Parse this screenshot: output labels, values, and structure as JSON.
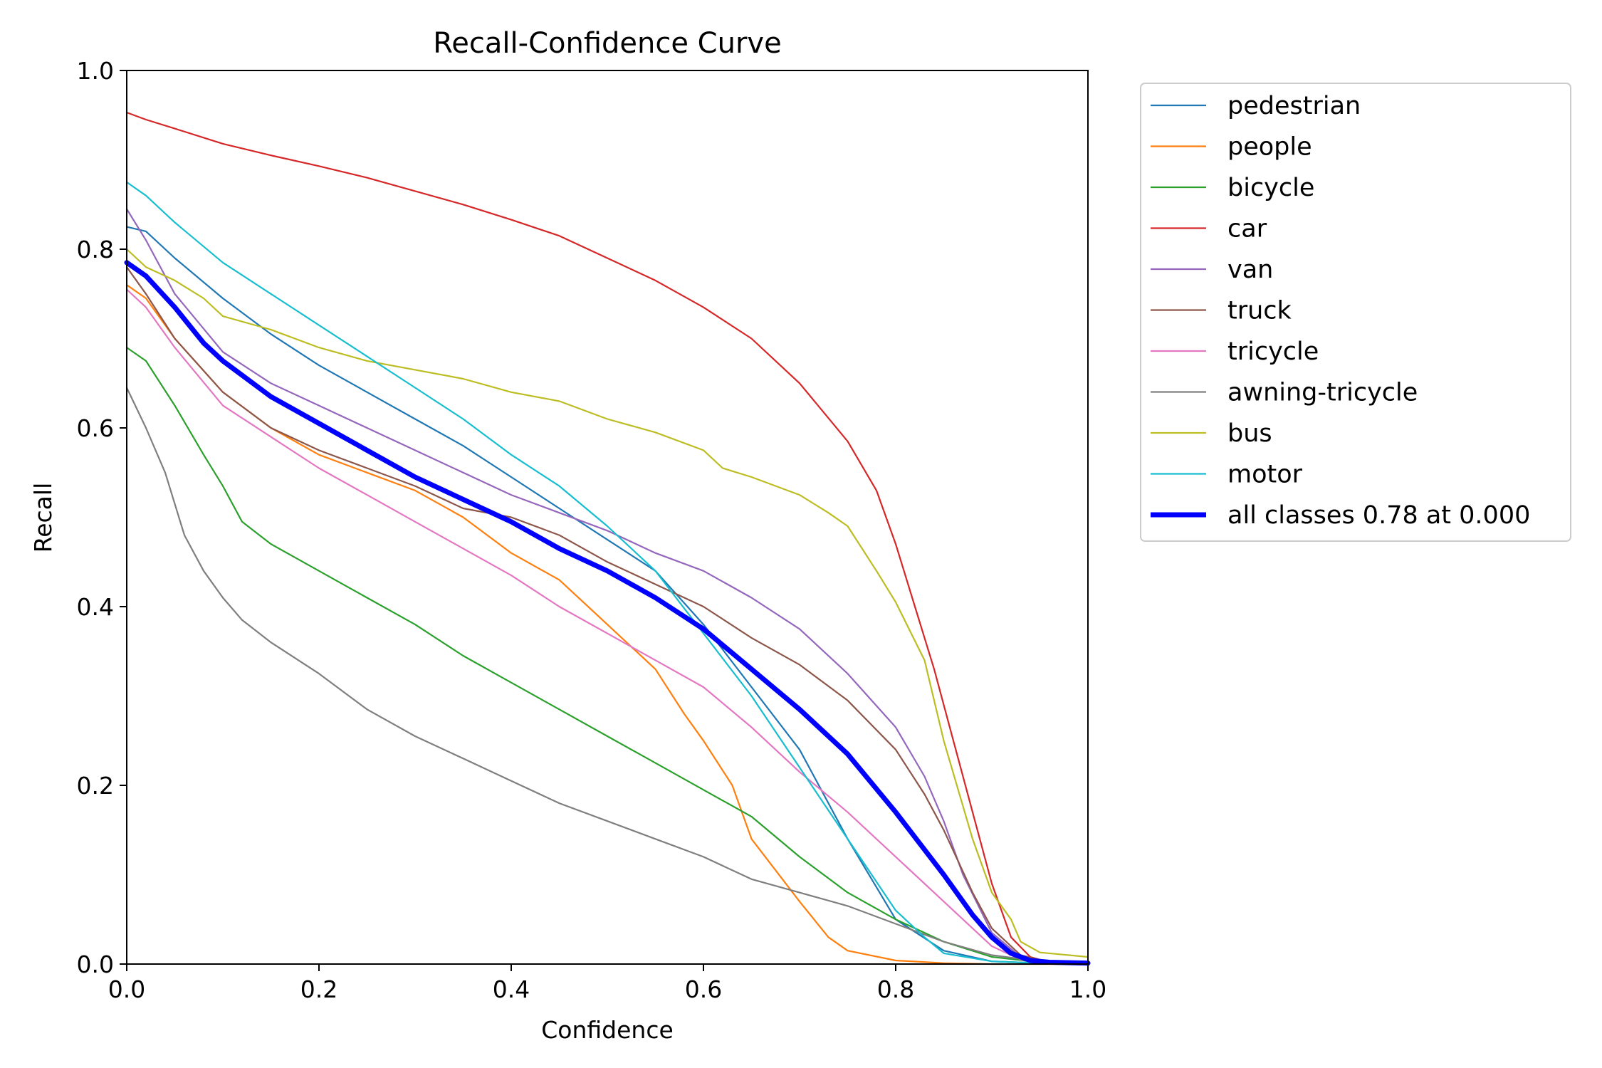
{
  "chart_data": {
    "type": "line",
    "title": "Recall-Confidence Curve",
    "xlabel": "Confidence",
    "ylabel": "Recall",
    "xlim": [
      0,
      1
    ],
    "ylim": [
      0,
      1
    ],
    "xticks": [
      "0.0",
      "0.2",
      "0.4",
      "0.6",
      "0.8",
      "1.0"
    ],
    "yticks": [
      "0.0",
      "0.2",
      "0.4",
      "0.6",
      "0.8",
      "1.0"
    ],
    "grid": false,
    "legend_position": "outside upper right",
    "series": [
      {
        "name": "pedestrian",
        "color": "#1f77b4",
        "width": "thin",
        "points": [
          [
            0,
            0.825
          ],
          [
            0.02,
            0.82
          ],
          [
            0.05,
            0.79
          ],
          [
            0.1,
            0.745
          ],
          [
            0.15,
            0.705
          ],
          [
            0.2,
            0.67
          ],
          [
            0.25,
            0.64
          ],
          [
            0.3,
            0.61
          ],
          [
            0.35,
            0.58
          ],
          [
            0.4,
            0.545
          ],
          [
            0.45,
            0.51
          ],
          [
            0.5,
            0.475
          ],
          [
            0.55,
            0.44
          ],
          [
            0.6,
            0.38
          ],
          [
            0.65,
            0.31
          ],
          [
            0.7,
            0.24
          ],
          [
            0.75,
            0.14
          ],
          [
            0.8,
            0.05
          ],
          [
            0.85,
            0.015
          ],
          [
            0.9,
            0.003
          ],
          [
            0.95,
            0.001
          ],
          [
            1.0,
            0.0
          ]
        ]
      },
      {
        "name": "people",
        "color": "#ff7f0e",
        "width": "thin",
        "points": [
          [
            0,
            0.76
          ],
          [
            0.02,
            0.745
          ],
          [
            0.05,
            0.7
          ],
          [
            0.1,
            0.64
          ],
          [
            0.15,
            0.6
          ],
          [
            0.2,
            0.57
          ],
          [
            0.25,
            0.55
          ],
          [
            0.3,
            0.53
          ],
          [
            0.35,
            0.5
          ],
          [
            0.4,
            0.46
          ],
          [
            0.45,
            0.43
          ],
          [
            0.5,
            0.38
          ],
          [
            0.55,
            0.33
          ],
          [
            0.58,
            0.28
          ],
          [
            0.6,
            0.25
          ],
          [
            0.63,
            0.2
          ],
          [
            0.65,
            0.14
          ],
          [
            0.7,
            0.07
          ],
          [
            0.73,
            0.03
          ],
          [
            0.75,
            0.015
          ],
          [
            0.8,
            0.004
          ],
          [
            0.85,
            0.001
          ],
          [
            0.9,
            0.0
          ],
          [
            1.0,
            0.0
          ]
        ]
      },
      {
        "name": "bicycle",
        "color": "#2ca02c",
        "width": "thin",
        "points": [
          [
            0,
            0.69
          ],
          [
            0.02,
            0.675
          ],
          [
            0.05,
            0.625
          ],
          [
            0.08,
            0.57
          ],
          [
            0.1,
            0.535
          ],
          [
            0.12,
            0.495
          ],
          [
            0.15,
            0.47
          ],
          [
            0.2,
            0.44
          ],
          [
            0.25,
            0.41
          ],
          [
            0.3,
            0.38
          ],
          [
            0.35,
            0.345
          ],
          [
            0.4,
            0.315
          ],
          [
            0.45,
            0.285
          ],
          [
            0.5,
            0.255
          ],
          [
            0.55,
            0.225
          ],
          [
            0.6,
            0.195
          ],
          [
            0.65,
            0.165
          ],
          [
            0.7,
            0.12
          ],
          [
            0.75,
            0.08
          ],
          [
            0.8,
            0.05
          ],
          [
            0.85,
            0.025
          ],
          [
            0.9,
            0.008
          ],
          [
            0.95,
            0.002
          ],
          [
            1.0,
            0.0
          ]
        ]
      },
      {
        "name": "car",
        "color": "#d62728",
        "width": "thin",
        "points": [
          [
            0,
            0.953
          ],
          [
            0.02,
            0.945
          ],
          [
            0.05,
            0.935
          ],
          [
            0.1,
            0.918
          ],
          [
            0.15,
            0.905
          ],
          [
            0.2,
            0.893
          ],
          [
            0.25,
            0.88
          ],
          [
            0.3,
            0.865
          ],
          [
            0.35,
            0.85
          ],
          [
            0.4,
            0.833
          ],
          [
            0.45,
            0.815
          ],
          [
            0.5,
            0.79
          ],
          [
            0.55,
            0.765
          ],
          [
            0.6,
            0.735
          ],
          [
            0.65,
            0.7
          ],
          [
            0.7,
            0.65
          ],
          [
            0.75,
            0.585
          ],
          [
            0.78,
            0.53
          ],
          [
            0.8,
            0.47
          ],
          [
            0.82,
            0.4
          ],
          [
            0.84,
            0.33
          ],
          [
            0.86,
            0.25
          ],
          [
            0.88,
            0.17
          ],
          [
            0.9,
            0.09
          ],
          [
            0.92,
            0.03
          ],
          [
            0.94,
            0.008
          ],
          [
            0.96,
            0.002
          ],
          [
            1.0,
            0.0
          ]
        ]
      },
      {
        "name": "van",
        "color": "#9467bd",
        "width": "thin",
        "points": [
          [
            0,
            0.845
          ],
          [
            0.02,
            0.81
          ],
          [
            0.05,
            0.75
          ],
          [
            0.1,
            0.685
          ],
          [
            0.15,
            0.65
          ],
          [
            0.2,
            0.625
          ],
          [
            0.25,
            0.6
          ],
          [
            0.3,
            0.575
          ],
          [
            0.35,
            0.55
          ],
          [
            0.4,
            0.525
          ],
          [
            0.45,
            0.505
          ],
          [
            0.5,
            0.485
          ],
          [
            0.55,
            0.46
          ],
          [
            0.6,
            0.44
          ],
          [
            0.65,
            0.41
          ],
          [
            0.7,
            0.375
          ],
          [
            0.75,
            0.325
          ],
          [
            0.8,
            0.265
          ],
          [
            0.83,
            0.21
          ],
          [
            0.85,
            0.16
          ],
          [
            0.87,
            0.1
          ],
          [
            0.9,
            0.035
          ],
          [
            0.93,
            0.008
          ],
          [
            0.96,
            0.002
          ],
          [
            1.0,
            0.0
          ]
        ]
      },
      {
        "name": "truck",
        "color": "#8c564b",
        "width": "thin",
        "points": [
          [
            0,
            0.78
          ],
          [
            0.02,
            0.75
          ],
          [
            0.05,
            0.7
          ],
          [
            0.1,
            0.64
          ],
          [
            0.15,
            0.6
          ],
          [
            0.2,
            0.575
          ],
          [
            0.25,
            0.555
          ],
          [
            0.3,
            0.535
          ],
          [
            0.35,
            0.51
          ],
          [
            0.4,
            0.5
          ],
          [
            0.45,
            0.48
          ],
          [
            0.5,
            0.45
          ],
          [
            0.55,
            0.425
          ],
          [
            0.6,
            0.4
          ],
          [
            0.65,
            0.365
          ],
          [
            0.7,
            0.335
          ],
          [
            0.75,
            0.295
          ],
          [
            0.8,
            0.24
          ],
          [
            0.83,
            0.19
          ],
          [
            0.85,
            0.15
          ],
          [
            0.88,
            0.08
          ],
          [
            0.9,
            0.04
          ],
          [
            0.93,
            0.01
          ],
          [
            0.96,
            0.002
          ],
          [
            1.0,
            0.0
          ]
        ]
      },
      {
        "name": "tricycle",
        "color": "#e377c2",
        "width": "thin",
        "points": [
          [
            0,
            0.755
          ],
          [
            0.02,
            0.735
          ],
          [
            0.05,
            0.69
          ],
          [
            0.1,
            0.625
          ],
          [
            0.15,
            0.59
          ],
          [
            0.2,
            0.555
          ],
          [
            0.25,
            0.525
          ],
          [
            0.3,
            0.495
          ],
          [
            0.35,
            0.465
          ],
          [
            0.4,
            0.435
          ],
          [
            0.45,
            0.4
          ],
          [
            0.5,
            0.37
          ],
          [
            0.55,
            0.34
          ],
          [
            0.6,
            0.31
          ],
          [
            0.65,
            0.265
          ],
          [
            0.7,
            0.215
          ],
          [
            0.75,
            0.17
          ],
          [
            0.8,
            0.12
          ],
          [
            0.85,
            0.07
          ],
          [
            0.9,
            0.02
          ],
          [
            0.93,
            0.005
          ],
          [
            0.96,
            0.001
          ],
          [
            1.0,
            0.0
          ]
        ]
      },
      {
        "name": "awning-tricycle",
        "color": "#7f7f7f",
        "width": "thin",
        "points": [
          [
            0,
            0.645
          ],
          [
            0.02,
            0.6
          ],
          [
            0.04,
            0.55
          ],
          [
            0.06,
            0.48
          ],
          [
            0.08,
            0.44
          ],
          [
            0.1,
            0.41
          ],
          [
            0.12,
            0.385
          ],
          [
            0.15,
            0.36
          ],
          [
            0.2,
            0.325
          ],
          [
            0.25,
            0.285
          ],
          [
            0.3,
            0.255
          ],
          [
            0.35,
            0.23
          ],
          [
            0.4,
            0.205
          ],
          [
            0.45,
            0.18
          ],
          [
            0.5,
            0.16
          ],
          [
            0.55,
            0.14
          ],
          [
            0.6,
            0.12
          ],
          [
            0.65,
            0.095
          ],
          [
            0.7,
            0.08
          ],
          [
            0.75,
            0.065
          ],
          [
            0.8,
            0.045
          ],
          [
            0.85,
            0.025
          ],
          [
            0.9,
            0.01
          ],
          [
            0.95,
            0.003
          ],
          [
            1.0,
            0.0
          ]
        ]
      },
      {
        "name": "bus",
        "color": "#bcbd22",
        "width": "thin",
        "points": [
          [
            0,
            0.8
          ],
          [
            0.02,
            0.78
          ],
          [
            0.05,
            0.765
          ],
          [
            0.08,
            0.745
          ],
          [
            0.1,
            0.725
          ],
          [
            0.15,
            0.71
          ],
          [
            0.2,
            0.69
          ],
          [
            0.25,
            0.675
          ],
          [
            0.3,
            0.665
          ],
          [
            0.35,
            0.655
          ],
          [
            0.4,
            0.64
          ],
          [
            0.45,
            0.63
          ],
          [
            0.5,
            0.61
          ],
          [
            0.55,
            0.595
          ],
          [
            0.6,
            0.575
          ],
          [
            0.62,
            0.555
          ],
          [
            0.65,
            0.545
          ],
          [
            0.7,
            0.525
          ],
          [
            0.73,
            0.505
          ],
          [
            0.75,
            0.49
          ],
          [
            0.78,
            0.44
          ],
          [
            0.8,
            0.405
          ],
          [
            0.83,
            0.34
          ],
          [
            0.85,
            0.25
          ],
          [
            0.88,
            0.14
          ],
          [
            0.9,
            0.08
          ],
          [
            0.92,
            0.05
          ],
          [
            0.93,
            0.025
          ],
          [
            0.95,
            0.013
          ],
          [
            1.0,
            0.008
          ]
        ]
      },
      {
        "name": "motor",
        "color": "#17becf",
        "width": "thin",
        "points": [
          [
            0,
            0.875
          ],
          [
            0.02,
            0.86
          ],
          [
            0.05,
            0.83
          ],
          [
            0.1,
            0.785
          ],
          [
            0.15,
            0.75
          ],
          [
            0.2,
            0.715
          ],
          [
            0.25,
            0.68
          ],
          [
            0.3,
            0.645
          ],
          [
            0.35,
            0.61
          ],
          [
            0.4,
            0.57
          ],
          [
            0.45,
            0.535
          ],
          [
            0.5,
            0.49
          ],
          [
            0.55,
            0.44
          ],
          [
            0.6,
            0.37
          ],
          [
            0.65,
            0.3
          ],
          [
            0.7,
            0.22
          ],
          [
            0.75,
            0.14
          ],
          [
            0.8,
            0.06
          ],
          [
            0.83,
            0.03
          ],
          [
            0.85,
            0.012
          ],
          [
            0.9,
            0.003
          ],
          [
            0.95,
            0.001
          ],
          [
            1.0,
            0.0
          ]
        ]
      },
      {
        "name": "all classes 0.78 at 0.000",
        "color": "#0000ff",
        "width": "thick",
        "points": [
          [
            0,
            0.785
          ],
          [
            0.02,
            0.77
          ],
          [
            0.05,
            0.735
          ],
          [
            0.08,
            0.695
          ],
          [
            0.1,
            0.675
          ],
          [
            0.15,
            0.635
          ],
          [
            0.2,
            0.605
          ],
          [
            0.25,
            0.575
          ],
          [
            0.3,
            0.545
          ],
          [
            0.35,
            0.52
          ],
          [
            0.4,
            0.495
          ],
          [
            0.45,
            0.465
          ],
          [
            0.5,
            0.44
          ],
          [
            0.55,
            0.41
          ],
          [
            0.6,
            0.375
          ],
          [
            0.65,
            0.33
          ],
          [
            0.7,
            0.285
          ],
          [
            0.75,
            0.235
          ],
          [
            0.8,
            0.17
          ],
          [
            0.85,
            0.1
          ],
          [
            0.88,
            0.055
          ],
          [
            0.9,
            0.03
          ],
          [
            0.92,
            0.012
          ],
          [
            0.94,
            0.004
          ],
          [
            0.96,
            0.002
          ],
          [
            1.0,
            0.001
          ]
        ]
      }
    ]
  }
}
